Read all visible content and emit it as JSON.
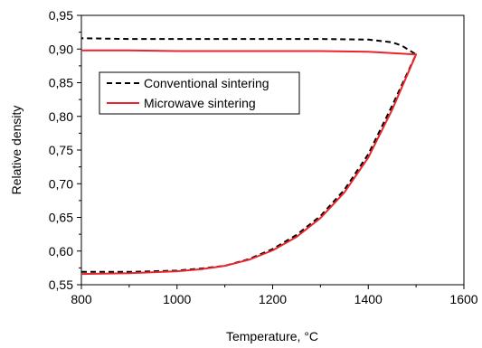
{
  "chart_data": {
    "type": "line",
    "title": "",
    "xlabel": "Temperature, °C",
    "ylabel": "Relative density",
    "xlim": [
      800,
      1600
    ],
    "ylim": [
      0.55,
      0.95
    ],
    "xticks": [
      800,
      1000,
      1200,
      1400,
      1600
    ],
    "xtick_labels": [
      "800",
      "1000",
      "1200",
      "1400",
      "1600"
    ],
    "yticks": [
      0.55,
      0.6,
      0.65,
      0.7,
      0.75,
      0.8,
      0.85,
      0.9,
      0.95
    ],
    "ytick_labels": [
      "0,55",
      "0,60",
      "0,65",
      "0,70",
      "0,75",
      "0,80",
      "0,85",
      "0,90",
      "0,95"
    ],
    "grid": false,
    "legend_position": "upper-left",
    "series": [
      {
        "name": "Conventional sintering",
        "color": "#000000",
        "style": "dashed",
        "x": [
          800,
          900,
          1000,
          1050,
          1100,
          1150,
          1200,
          1250,
          1300,
          1350,
          1400,
          1450,
          1500,
          1470,
          1450,
          1400,
          1300,
          1200,
          1100,
          1000,
          900,
          800
        ],
        "y": [
          0.569,
          0.569,
          0.571,
          0.574,
          0.578,
          0.588,
          0.603,
          0.624,
          0.652,
          0.691,
          0.744,
          0.816,
          0.892,
          0.905,
          0.91,
          0.914,
          0.915,
          0.915,
          0.915,
          0.915,
          0.915,
          0.916
        ]
      },
      {
        "name": "Microwave sintering",
        "color": "#e8262b",
        "style": "solid",
        "x": [
          800,
          900,
          1000,
          1050,
          1100,
          1150,
          1200,
          1250,
          1300,
          1350,
          1400,
          1450,
          1500,
          1450,
          1400,
          1300,
          1200,
          1100,
          1000,
          900,
          800
        ],
        "y": [
          0.566,
          0.567,
          0.57,
          0.573,
          0.578,
          0.587,
          0.601,
          0.621,
          0.649,
          0.687,
          0.739,
          0.81,
          0.892,
          0.894,
          0.896,
          0.897,
          0.897,
          0.897,
          0.897,
          0.898,
          0.898
        ]
      }
    ]
  }
}
